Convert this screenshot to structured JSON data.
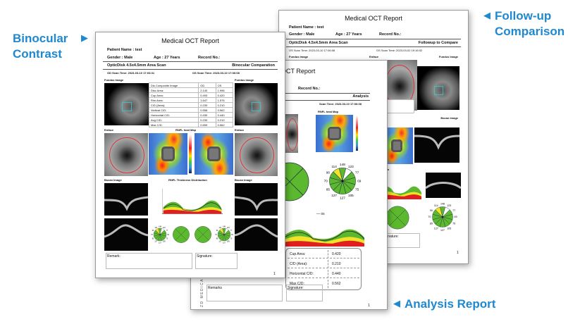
{
  "callouts": {
    "binocular": [
      "Binocular",
      "Contrast"
    ],
    "followup": [
      "Follow-up",
      "Comparison"
    ],
    "analysis": "Analysis Report"
  },
  "report": {
    "title": "Medical OCT Report",
    "patient_name": "Patient Name :  test",
    "gender": "Gender :  Male",
    "age": "Age :  27  Years",
    "record": "Record No.:",
    "scan_type": "OpticDisk  4.5x4.5mm Area Scan",
    "page_number": "1",
    "remark": "Remark:",
    "remarks": "Remarks",
    "signature": "Signature:"
  },
  "binocular": {
    "mode": "Binocular Comparation",
    "od_scan": "OD   Scan Time:   2023-03-10 17:03:31",
    "os_scan": "OS   Scan Time:   2023-03-10 17:06:08",
    "fundus_label": "Fundus Image",
    "enface_label": "Enface",
    "heatmap_label": "RNFL heat Map",
    "bscan_label": "Bscan Image",
    "thickness_label": "RNFL Thickness Distribution",
    "table": [
      [
        "Dis Composite Image",
        "OD",
        "OS"
      ],
      [
        "Disc Area:",
        "2.140",
        "1.996"
      ],
      [
        "Cup Area:",
        "0.493",
        "0.420"
      ],
      [
        "Rim Area:",
        "1.647",
        "1.576"
      ],
      [
        "C/D (Area):",
        "0.230",
        "0.210"
      ],
      [
        "Vertical C/D:",
        "0.558",
        "0.562"
      ],
      [
        "Horizontal C/D:",
        "0.430",
        "0.440"
      ],
      [
        "Avg C/D:",
        "0.230",
        "0.210"
      ],
      [
        "Max C/D:",
        "0.559",
        "0.562"
      ]
    ]
  },
  "followup": {
    "mode": "Followup to Compare",
    "os_scan_1": "OS   Scan Time:   2023-03-10 17:06:08",
    "os_scan_2": "OS   Scan Time:   2023-03-02 19:16:02",
    "fundus_label": "Fundus Image",
    "enface_label": "Enface",
    "bscan_label": "Bscan Image",
    "dist_label": "tribution",
    "map_label": "Map"
  },
  "analysis": {
    "title_visible": "OCT Report",
    "mode": "Analysis",
    "scan": "Scan Time:   2023-03-10 17:06:08",
    "heatmap_label": "RNFL heat Map",
    "legend": "os",
    "brand": "ZD MEDICAL",
    "table": [
      [
        "Cup Area:",
        "0.420"
      ],
      [
        "C/D (Area):",
        "0.210"
      ],
      [
        "Horizontal C/D:",
        "0.440"
      ],
      [
        "Max C/D:",
        "0.562"
      ]
    ]
  },
  "clock_hours": {
    "values": [
      148,
      123,
      77,
      69,
      75,
      105,
      127,
      127,
      85,
      70,
      90,
      114
    ],
    "status": [
      "green",
      "white",
      "green",
      "green",
      "green",
      "green",
      "green",
      "green",
      "green",
      "green",
      "green",
      "yellow"
    ]
  },
  "colors": {
    "accent": "#1e88d0",
    "green": "#5cb82e",
    "yellow": "#f2e22a",
    "white": "#ffffff"
  }
}
